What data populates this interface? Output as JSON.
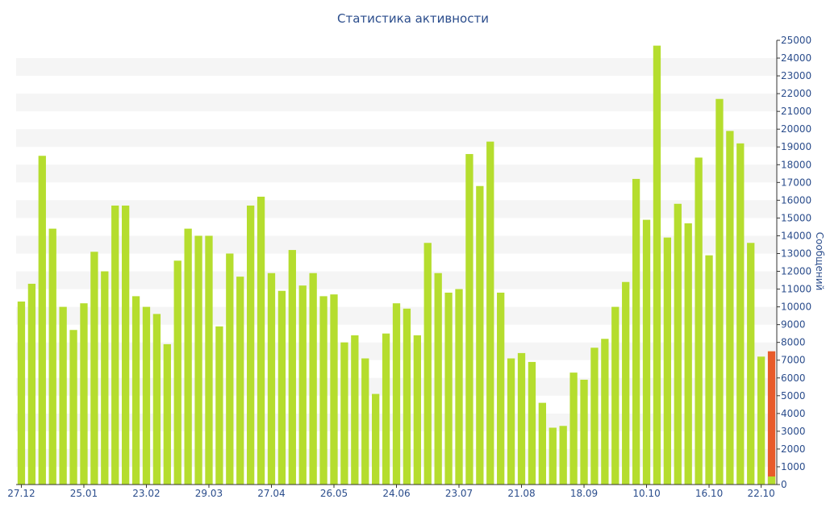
{
  "chart_data": {
    "type": "bar",
    "title": "Статистика активности",
    "ylabel": "Сообщений",
    "ylim": [
      0,
      25000
    ],
    "y_tick_step": 1000,
    "x_tick_labels": [
      "27.12",
      "25.01",
      "23.02",
      "29.03",
      "27.04",
      "26.05",
      "24.06",
      "23.07",
      "21.08",
      "18.09",
      "10.10",
      "16.10",
      "22.10"
    ],
    "x_tick_bar_index": [
      0,
      6,
      12,
      18,
      24,
      30,
      36,
      42,
      48,
      54,
      60,
      66,
      71
    ],
    "values": [
      10300,
      11300,
      18500,
      14400,
      10000,
      8700,
      10200,
      13100,
      12000,
      15700,
      15700,
      10600,
      10000,
      9600,
      7900,
      12600,
      14400,
      14000,
      14000,
      8900,
      13000,
      11700,
      15700,
      16200,
      11900,
      10900,
      13200,
      11200,
      11900,
      10600,
      10700,
      8000,
      8400,
      7100,
      5100,
      8500,
      10200,
      9900,
      8400,
      13600,
      11900,
      10800,
      11000,
      18600,
      16800,
      19300,
      10800,
      7100,
      7400,
      6900,
      4600,
      3200,
      3300,
      6300,
      5900,
      7700,
      8200,
      10000,
      11400,
      17200,
      14900,
      24700,
      13900,
      15800,
      14700,
      18400,
      12900,
      21700,
      19900,
      19200,
      13600,
      7200,
      7500
    ],
    "highlight_last": true,
    "grid": "alternating-bands",
    "colors": {
      "bar": "#b5dd2e",
      "highlight": "#e85b2a",
      "band": "#f5f5f5",
      "text": "#2b4d8c",
      "axis": "#333333"
    }
  }
}
